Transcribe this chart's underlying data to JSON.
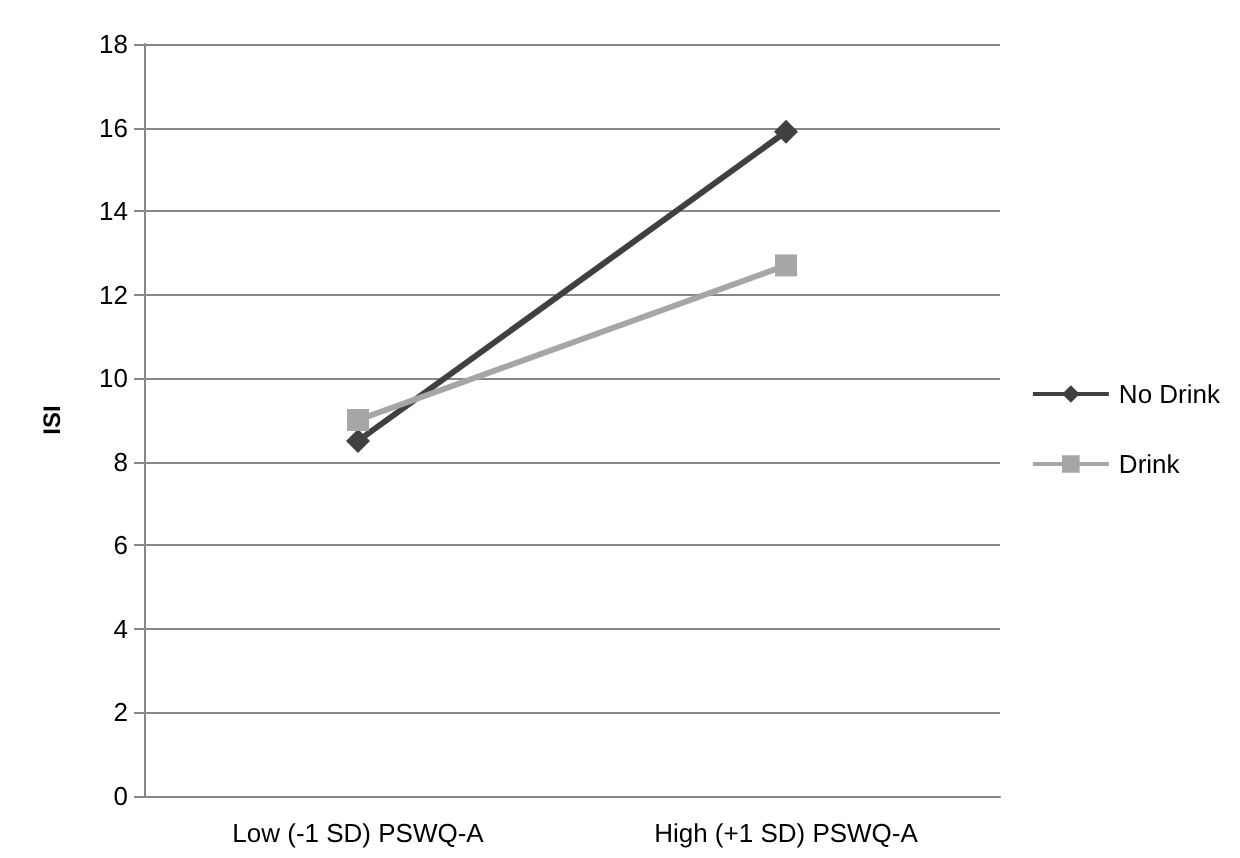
{
  "chart_data": {
    "type": "line",
    "ylabel": "ISI",
    "categories": [
      "Low (-1 SD) PSWQ-A",
      "High (+1 SD) PSWQ-A"
    ],
    "series": [
      {
        "name": "No Drink",
        "color": "#404040",
        "marker": "diamond",
        "values": [
          8.5,
          15.9
        ]
      },
      {
        "name": "Drink",
        "color": "#a6a6a6",
        "marker": "square",
        "values": [
          9.0,
          12.7
        ]
      }
    ],
    "ylim": [
      0,
      18
    ],
    "yticks": [
      0,
      2,
      4,
      6,
      8,
      10,
      12,
      14,
      16,
      18
    ],
    "grid": "y",
    "legend": "right"
  }
}
